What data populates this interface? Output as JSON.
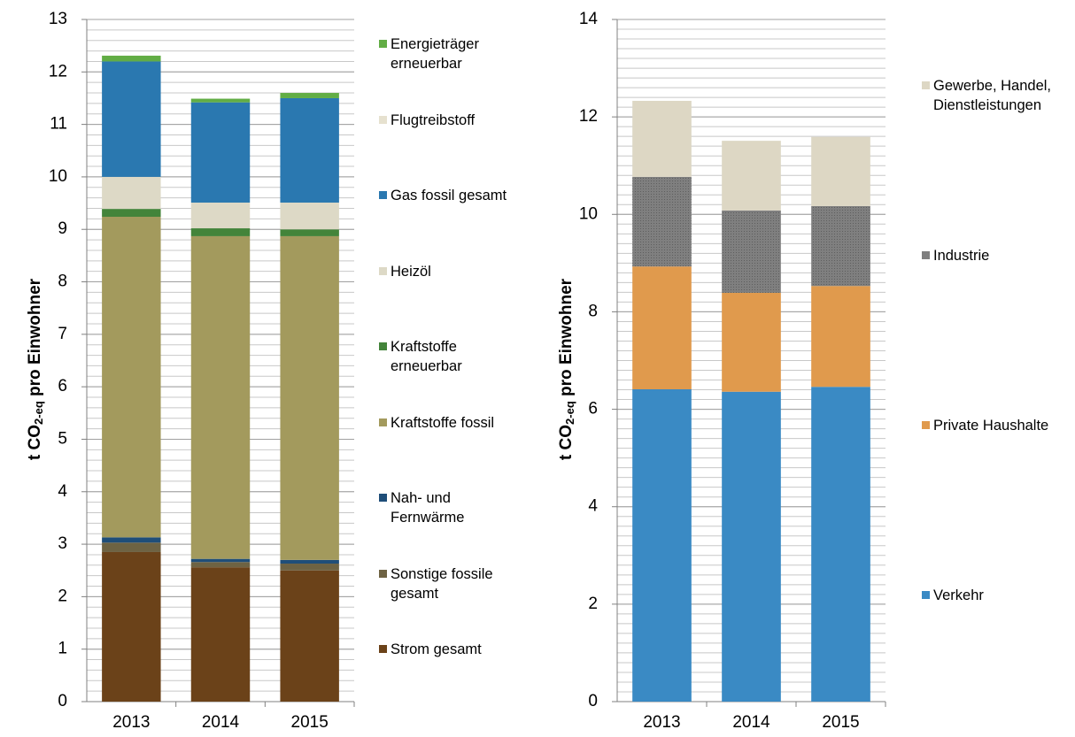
{
  "chart_data": [
    {
      "type": "bar",
      "stacked": true,
      "ylabel": [
        "t CO",
        "2-eq",
        " pro Einwohner"
      ],
      "categories": [
        "2013",
        "2014",
        "2015"
      ],
      "series": [
        {
          "name": "Strom gesamt",
          "color": "#6b4219",
          "values": [
            2.85,
            2.56,
            2.5
          ]
        },
        {
          "name": "Sonstige fossile gesamt",
          "color": "#6e6343",
          "values": [
            0.18,
            0.1,
            0.13
          ]
        },
        {
          "name": "Nah- und Fernwärme",
          "color": "#1f4e79",
          "values": [
            0.1,
            0.06,
            0.07
          ]
        },
        {
          "name": "Kraftstoffe fossil",
          "color": "#a39a5d",
          "values": [
            6.11,
            6.15,
            6.17
          ]
        },
        {
          "name": "Kraftstoffe erneuerbar",
          "color": "#43843a",
          "values": [
            0.15,
            0.15,
            0.13
          ]
        },
        {
          "name": "Heizöl",
          "color": "#ddd9c6",
          "values": [
            0.61,
            0.49,
            0.51
          ]
        },
        {
          "name": "Gas fossil gesamt",
          "color": "#2a78b0",
          "values": [
            2.2,
            1.91,
            1.99
          ]
        },
        {
          "name": "Flugtreibstoff",
          "color": "#e6e1cf",
          "values": [
            0,
            0,
            0
          ]
        },
        {
          "name": "Energieträger erneuerbar",
          "color": "#62ad45",
          "values": [
            0.11,
            0.07,
            0.1
          ]
        }
      ],
      "ylim": [
        0,
        13
      ],
      "yticks": [
        0,
        1,
        2,
        3,
        4,
        5,
        6,
        7,
        8,
        9,
        10,
        11,
        12,
        13
      ],
      "grid": true,
      "minor_grid": 0.2,
      "legend": "right"
    },
    {
      "type": "bar",
      "stacked": true,
      "ylabel": [
        "t CO",
        "2-eq",
        " pro Einwohner"
      ],
      "categories": [
        "2013",
        "2014",
        "2015"
      ],
      "series": [
        {
          "name": "Verkehr",
          "color": "#3a8ac4",
          "values": [
            6.41,
            6.36,
            6.46
          ]
        },
        {
          "name": "Private Haushalte",
          "color": "#e09a4d",
          "values": [
            2.52,
            2.03,
            2.07
          ]
        },
        {
          "name": "Industrie",
          "color": "#7f7f7f",
          "values": [
            1.84,
            1.69,
            1.64
          ]
        },
        {
          "name": "Gewerbe, Handel, Dienstleistungen",
          "color": "#ddd7c4",
          "values": [
            1.56,
            1.43,
            1.42
          ]
        }
      ],
      "ylim": [
        0,
        14
      ],
      "yticks": [
        0,
        2,
        4,
        6,
        8,
        10,
        12,
        14
      ],
      "grid": true,
      "minor_grid": 0.2,
      "legend": "right"
    }
  ]
}
